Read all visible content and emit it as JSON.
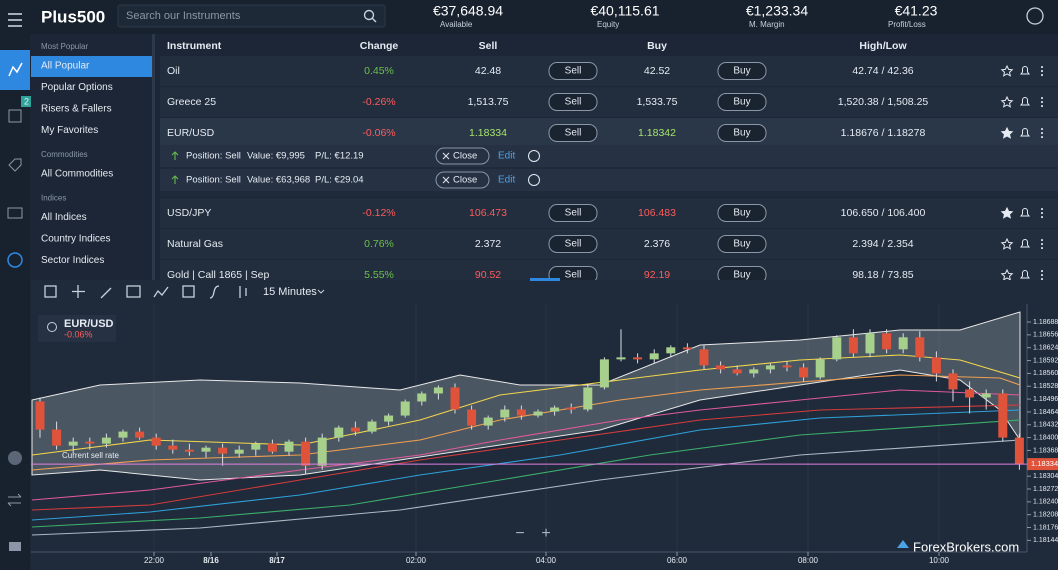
{
  "header": {
    "logo": "Plus500",
    "search_placeholder": "Search our Instruments",
    "stats": [
      {
        "value": "€37,648.94",
        "label": "Available"
      },
      {
        "value": "€40,115.61",
        "label": "Equity"
      },
      {
        "value": "€1,233.34",
        "label": "M. Margin"
      },
      {
        "value": "€41.23",
        "label": "Profit/Loss"
      }
    ]
  },
  "rail": {
    "badge": "2"
  },
  "sidebar": [
    {
      "heading": "Most Popular",
      "items": [
        "All Popular",
        "Popular Options",
        "Risers & Fallers",
        "My Favorites"
      ],
      "selected": 0
    },
    {
      "heading": "Commodities",
      "items": [
        "All Commodities"
      ]
    },
    {
      "heading": "Indices",
      "items": [
        "All Indices",
        "Country Indices",
        "Sector Indices"
      ]
    }
  ],
  "table": {
    "columns": [
      "Instrument",
      "Change",
      "Sell",
      "Buy",
      "High/Low"
    ],
    "sell_button": "Sell",
    "buy_button": "Buy",
    "rows": [
      {
        "name": "Oil",
        "change": "0.45%",
        "change_color": "#6cc24a",
        "sell": "42.48",
        "buy": "42.52",
        "price_color": "#e6ebf2",
        "high_low": "42.74 / 42.36",
        "starred": false
      },
      {
        "name": "Greece 25",
        "change": "-0.26%",
        "change_color": "#ff5c5c",
        "sell": "1,513.75",
        "buy": "1,533.75",
        "price_color": "#e6ebf2",
        "high_low": "1,520.38 / 1,508.25",
        "starred": false
      },
      {
        "name": "EUR/USD",
        "change": "-0.06%",
        "change_color": "#ff5c5c",
        "sell": "1.18334",
        "buy": "1.18342",
        "price_color": "#a6e36a",
        "high_low": "1.18676 / 1.18278",
        "starred": true
      },
      {
        "name": "USD/JPY",
        "change": "-0.12%",
        "change_color": "#ff5c5c",
        "sell": "106.473",
        "buy": "106.483",
        "price_color": "#ff5c5c",
        "high_low": "106.650 / 106.400",
        "starred": true
      },
      {
        "name": "Natural Gas",
        "change": "0.76%",
        "change_color": "#6cc24a",
        "sell": "2.372",
        "buy": "2.376",
        "price_color": "#e6ebf2",
        "high_low": "2.394 / 2.354",
        "starred": false
      },
      {
        "name": "Gold | Call 1865 | Sep",
        "change": "5.55%",
        "change_color": "#6cc24a",
        "sell": "90.52",
        "buy": "92.19",
        "price_color": "#ff5c5c",
        "high_low": "98.18 / 73.85",
        "starred": false
      }
    ],
    "positions": [
      {
        "side": "Position: Sell",
        "value": "Value: €9,995",
        "pl": "P/L: €12.19",
        "close": "Close",
        "edit": "Edit"
      },
      {
        "side": "Position: Sell",
        "value": "Value: €63,968",
        "pl": "P/L: €29.04",
        "close": "Close",
        "edit": "Edit"
      }
    ]
  },
  "chart": {
    "type": "candlestick",
    "timeframe": "15 Minutes",
    "instrument": "EUR/USD",
    "change": "-0.06%",
    "current_rate_label": "Current sell rate",
    "current_price": 1.18334,
    "ylim": [
      1.18115,
      1.18713
    ],
    "yticks": [
      1.18688,
      1.18656,
      1.18624,
      1.18592,
      {
        "value": 1.1856,
        "label": "1.18560"
      },
      1.18528,
      1.18496,
      1.18464,
      1.18432,
      {
        "value": 1.184,
        "label": "1.18400"
      },
      1.18368,
      1.18304,
      1.18272,
      {
        "value": 1.1824,
        "label": "1.18240"
      },
      1.18208,
      1.18176,
      1.18144
    ],
    "xlabels": [
      "22:00",
      "8/16",
      "8/17",
      "02:00",
      "04:00",
      "06:00",
      "08:00",
      "10:00"
    ],
    "up_color": "#a8d08d",
    "down_color": "#e0533b",
    "candles": [
      [
        1.1849,
        1.185,
        1.184,
        1.1842
      ],
      [
        1.1842,
        1.1844,
        1.1837,
        1.1838
      ],
      [
        1.1838,
        1.184,
        1.1836,
        1.1839
      ],
      [
        1.1839,
        1.184,
        1.1837,
        1.18385
      ],
      [
        1.18385,
        1.1841,
        1.18375,
        1.184
      ],
      [
        1.184,
        1.1842,
        1.1839,
        1.18415
      ],
      [
        1.18415,
        1.18425,
        1.18395,
        1.184
      ],
      [
        1.184,
        1.1841,
        1.1837,
        1.1838
      ],
      [
        1.1838,
        1.18395,
        1.1836,
        1.1837
      ],
      [
        1.1837,
        1.18385,
        1.18355,
        1.18365
      ],
      [
        1.18365,
        1.1838,
        1.1835,
        1.18375
      ],
      [
        1.18375,
        1.18385,
        1.1833,
        1.1836
      ],
      [
        1.1836,
        1.1838,
        1.1835,
        1.1837
      ],
      [
        1.1837,
        1.1839,
        1.18355,
        1.18385
      ],
      [
        1.18385,
        1.18395,
        1.1836,
        1.18365
      ],
      [
        1.18365,
        1.18395,
        1.18355,
        1.1839
      ],
      [
        1.1839,
        1.184,
        1.1831,
        1.1833
      ],
      [
        1.1833,
        1.1841,
        1.1832,
        1.184
      ],
      [
        1.184,
        1.1843,
        1.1839,
        1.18425
      ],
      [
        1.18425,
        1.1844,
        1.18405,
        1.18415
      ],
      [
        1.18415,
        1.18445,
        1.1841,
        1.1844
      ],
      [
        1.1844,
        1.1846,
        1.1843,
        1.18455
      ],
      [
        1.18455,
        1.18495,
        1.1845,
        1.1849
      ],
      [
        1.1849,
        1.18515,
        1.1848,
        1.1851
      ],
      [
        1.1851,
        1.1853,
        1.18495,
        1.18525
      ],
      [
        1.18525,
        1.18535,
        1.1846,
        1.1847
      ],
      [
        1.1847,
        1.1848,
        1.1842,
        1.1843
      ],
      [
        1.1843,
        1.18455,
        1.1842,
        1.1845
      ],
      [
        1.1845,
        1.1848,
        1.1844,
        1.1847
      ],
      [
        1.1847,
        1.1848,
        1.18445,
        1.18455
      ],
      [
        1.18455,
        1.1847,
        1.1845,
        1.18465
      ],
      [
        1.18465,
        1.1848,
        1.18455,
        1.18475
      ],
      [
        1.18475,
        1.18485,
        1.1846,
        1.1847
      ],
      [
        1.1847,
        1.1853,
        1.18465,
        1.18525
      ],
      [
        1.18525,
        1.186,
        1.1852,
        1.18595
      ],
      [
        1.18595,
        1.1867,
        1.1859,
        1.186
      ],
      [
        1.186,
        1.1861,
        1.18585,
        1.18595
      ],
      [
        1.18595,
        1.1862,
        1.18585,
        1.1861
      ],
      [
        1.1861,
        1.1863,
        1.186,
        1.18625
      ],
      [
        1.18625,
        1.18635,
        1.1861,
        1.1862
      ],
      [
        1.1862,
        1.1863,
        1.1857,
        1.1858
      ],
      [
        1.1858,
        1.1859,
        1.1856,
        1.1857
      ],
      [
        1.1857,
        1.1858,
        1.18555,
        1.1856
      ],
      [
        1.1856,
        1.18575,
        1.1855,
        1.1857
      ],
      [
        1.1857,
        1.18585,
        1.1856,
        1.1858
      ],
      [
        1.1858,
        1.1859,
        1.18565,
        1.18575
      ],
      [
        1.18575,
        1.18585,
        1.1854,
        1.1855
      ],
      [
        1.1855,
        1.186,
        1.18545,
        1.18595
      ],
      [
        1.18595,
        1.18655,
        1.1859,
        1.1865
      ],
      [
        1.1865,
        1.1867,
        1.186,
        1.1861
      ],
      [
        1.1861,
        1.1867,
        1.186,
        1.1866
      ],
      [
        1.1866,
        1.1867,
        1.1861,
        1.1862
      ],
      [
        1.1862,
        1.1866,
        1.1861,
        1.1865
      ],
      [
        1.1865,
        1.18665,
        1.1859,
        1.186
      ],
      [
        1.186,
        1.18615,
        1.1854,
        1.1856
      ],
      [
        1.1856,
        1.1857,
        1.1849,
        1.1852
      ],
      [
        1.1852,
        1.1854,
        1.1846,
        1.185
      ],
      [
        1.185,
        1.1852,
        1.1847,
        1.1851
      ],
      [
        1.1851,
        1.1852,
        1.1839,
        1.184
      ],
      [
        1.184,
        1.1841,
        1.1832,
        1.18334
      ]
    ]
  },
  "watermark": "ForexBrokers.com"
}
